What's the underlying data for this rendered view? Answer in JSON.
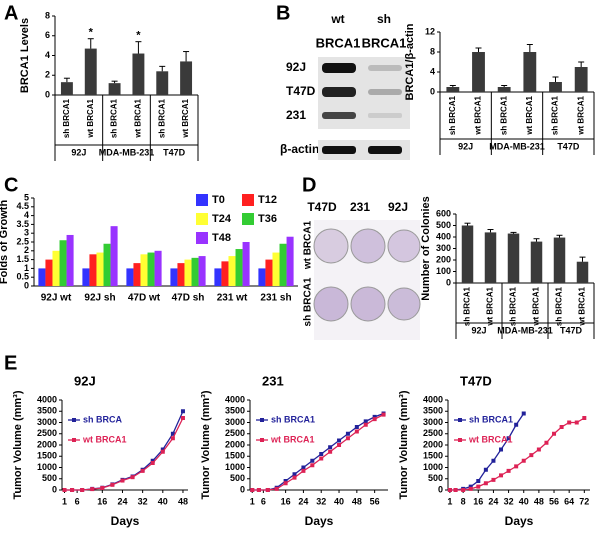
{
  "panel_labels": [
    "A",
    "B",
    "C",
    "D",
    "E"
  ],
  "blot": {
    "columns": [
      "wt",
      "sh"
    ],
    "column_labels": [
      "BRCA1",
      "BRCA1"
    ],
    "rows": [
      "92J",
      "T47D",
      "231",
      "β-actin"
    ]
  },
  "plates": {
    "columns": [
      "T47D",
      "231",
      "92J"
    ],
    "rows": [
      "wt BRCA1",
      "sh BRCA1"
    ]
  },
  "chart_data": [
    {
      "type": "bar",
      "ylabel": "BRCA1 Levels",
      "categories": [
        "sh BRCA1",
        "wt BRCA1",
        "sh BRCA1",
        "wt BRCA1",
        "sh BRCA1",
        "wt BRCA1"
      ],
      "groups": [
        "92J",
        "MDA-MB-231",
        "T47D"
      ],
      "values": [
        1.3,
        4.7,
        1.2,
        4.2,
        2.4,
        3.4
      ],
      "errors": [
        0.4,
        1.0,
        0.2,
        1.2,
        0.5,
        1.0
      ],
      "annotations": [
        null,
        "*",
        null,
        "*",
        null,
        null
      ],
      "color": "#3a3a3a",
      "ylim": [
        0,
        8
      ],
      "yticks": [
        0,
        2,
        4,
        6,
        8
      ]
    },
    {
      "type": "bar",
      "ylabel": "BRCA1/β-actin",
      "categories": [
        "sh BRCA1",
        "wt BRCA1",
        "sh BRCA1",
        "wt BRCA1",
        "sh BRCA1",
        "wt BRCA1"
      ],
      "groups": [
        "92J",
        "MDA-MB-231",
        "T47D"
      ],
      "values": [
        1,
        8,
        1,
        8,
        2,
        5
      ],
      "errors": [
        0.3,
        0.8,
        0.3,
        1.5,
        1.0,
        1.0
      ],
      "color": "#3a3a3a",
      "ylim": [
        0,
        12
      ],
      "yticks": [
        0,
        4,
        8,
        12
      ]
    },
    {
      "type": "bar",
      "ylabel": "Folds of Growth",
      "categories": [
        "92J wt",
        "92J sh",
        "47D wt",
        "47D sh",
        "231 wt",
        "231 sh"
      ],
      "series": [
        {
          "name": "T0",
          "color": "#3333ff",
          "values": [
            1,
            1,
            1,
            1,
            1,
            1
          ]
        },
        {
          "name": "T12",
          "color": "#ff2020",
          "values": [
            1.5,
            1.8,
            1.3,
            1.3,
            1.4,
            1.5
          ]
        },
        {
          "name": "T24",
          "color": "#ffff33",
          "values": [
            2.0,
            1.9,
            1.8,
            1.5,
            1.7,
            1.9
          ]
        },
        {
          "name": "T36",
          "color": "#33cc33",
          "values": [
            2.6,
            2.4,
            1.9,
            1.6,
            2.1,
            2.4
          ]
        },
        {
          "name": "T48",
          "color": "#9933ff",
          "values": [
            2.9,
            3.4,
            2.0,
            1.7,
            2.5,
            2.8
          ]
        }
      ],
      "ylim": [
        0,
        5
      ],
      "yticks": [
        0,
        0.5,
        1,
        1.5,
        2,
        2.5,
        3,
        3.5,
        4,
        4.5,
        5
      ]
    },
    {
      "type": "bar",
      "ylabel": "Number of Colonies",
      "categories": [
        "sh BRCA1",
        "wt BRCA1",
        "sh BRCA1",
        "wt BRCA1",
        "sh BRCA1",
        "wt BRCA1"
      ],
      "groups": [
        "92J",
        "MDA-MB-231",
        "T47D"
      ],
      "values": [
        500,
        440,
        430,
        360,
        395,
        185
      ],
      "errors": [
        20,
        25,
        10,
        25,
        20,
        40
      ],
      "color": "#3a3a3a",
      "ylim": [
        0,
        600
      ],
      "yticks": [
        0,
        100,
        200,
        300,
        400,
        500,
        600
      ]
    },
    {
      "type": "line",
      "title": "92J",
      "ylabel": "Tumor Volume (mm³)",
      "xlabel": "Days",
      "series": [
        {
          "name": "sh BRCA",
          "color": "#22229a",
          "x": [
            1,
            4,
            8,
            12,
            16,
            20,
            24,
            28,
            32,
            36,
            40,
            44,
            48
          ],
          "values": [
            0,
            0,
            0,
            50,
            100,
            250,
            450,
            600,
            900,
            1300,
            1800,
            2500,
            3500
          ]
        },
        {
          "name": "wt BRCA1",
          "color": "#dd2255",
          "x": [
            1,
            4,
            8,
            12,
            16,
            20,
            24,
            28,
            32,
            36,
            40,
            44,
            48
          ],
          "values": [
            0,
            0,
            0,
            40,
            90,
            230,
            420,
            570,
            850,
            1200,
            1700,
            2300,
            3200
          ]
        }
      ],
      "xlim": [
        0,
        50
      ],
      "xticks": [
        1,
        6,
        16,
        24,
        32,
        40,
        48
      ],
      "ylim": [
        0,
        4000
      ],
      "yticks": [
        0,
        500,
        1000,
        1500,
        2000,
        2500,
        3000,
        3500,
        4000
      ]
    },
    {
      "type": "line",
      "title": "231",
      "ylabel": "Tumor Volume (mm³)",
      "xlabel": "Days",
      "series": [
        {
          "name": "sh BRCA1",
          "color": "#22229a",
          "x": [
            1,
            4,
            8,
            12,
            16,
            20,
            24,
            28,
            32,
            36,
            40,
            44,
            48,
            52,
            56,
            60
          ],
          "values": [
            0,
            0,
            0,
            100,
            400,
            700,
            1000,
            1300,
            1600,
            1900,
            2200,
            2500,
            2800,
            3050,
            3250,
            3400
          ]
        },
        {
          "name": "wt BRCA1",
          "color": "#dd2255",
          "x": [
            1,
            4,
            8,
            12,
            16,
            20,
            24,
            28,
            32,
            36,
            40,
            44,
            48,
            52,
            56,
            60
          ],
          "values": [
            0,
            0,
            0,
            50,
            300,
            550,
            850,
            1100,
            1400,
            1700,
            2000,
            2300,
            2600,
            2900,
            3150,
            3350
          ]
        }
      ],
      "xlim": [
        0,
        62
      ],
      "xticks": [
        1,
        6,
        16,
        24,
        32,
        40,
        48,
        56
      ],
      "ylim": [
        0,
        4000
      ],
      "yticks": [
        0,
        500,
        1000,
        1500,
        2000,
        2500,
        3000,
        3500,
        4000
      ]
    },
    {
      "type": "line",
      "title": "T47D",
      "ylabel": "Tumor Volume (mm³)",
      "xlabel": "Days",
      "series": [
        {
          "name": "sh BRCA1",
          "color": "#22229a",
          "x": [
            1,
            4,
            8,
            12,
            16,
            20,
            24,
            28,
            32,
            36,
            40
          ],
          "values": [
            0,
            0,
            50,
            150,
            400,
            900,
            1300,
            1800,
            2300,
            2900,
            3400
          ]
        },
        {
          "name": "wt BRCA1",
          "color": "#dd2255",
          "x": [
            1,
            4,
            8,
            12,
            16,
            20,
            24,
            28,
            32,
            36,
            40,
            44,
            48,
            52,
            56,
            60,
            64,
            68,
            72
          ],
          "values": [
            0,
            0,
            0,
            50,
            150,
            300,
            450,
            650,
            850,
            1050,
            1300,
            1550,
            1800,
            2100,
            2500,
            2800,
            3000,
            3000,
            3200
          ]
        }
      ],
      "xlim": [
        0,
        75
      ],
      "xticks": [
        1,
        8,
        16,
        24,
        32,
        40,
        48,
        56,
        64,
        72
      ],
      "ylim": [
        0,
        4000
      ],
      "yticks": [
        0,
        500,
        1000,
        1500,
        2000,
        2500,
        3000,
        3500,
        4000
      ]
    }
  ]
}
